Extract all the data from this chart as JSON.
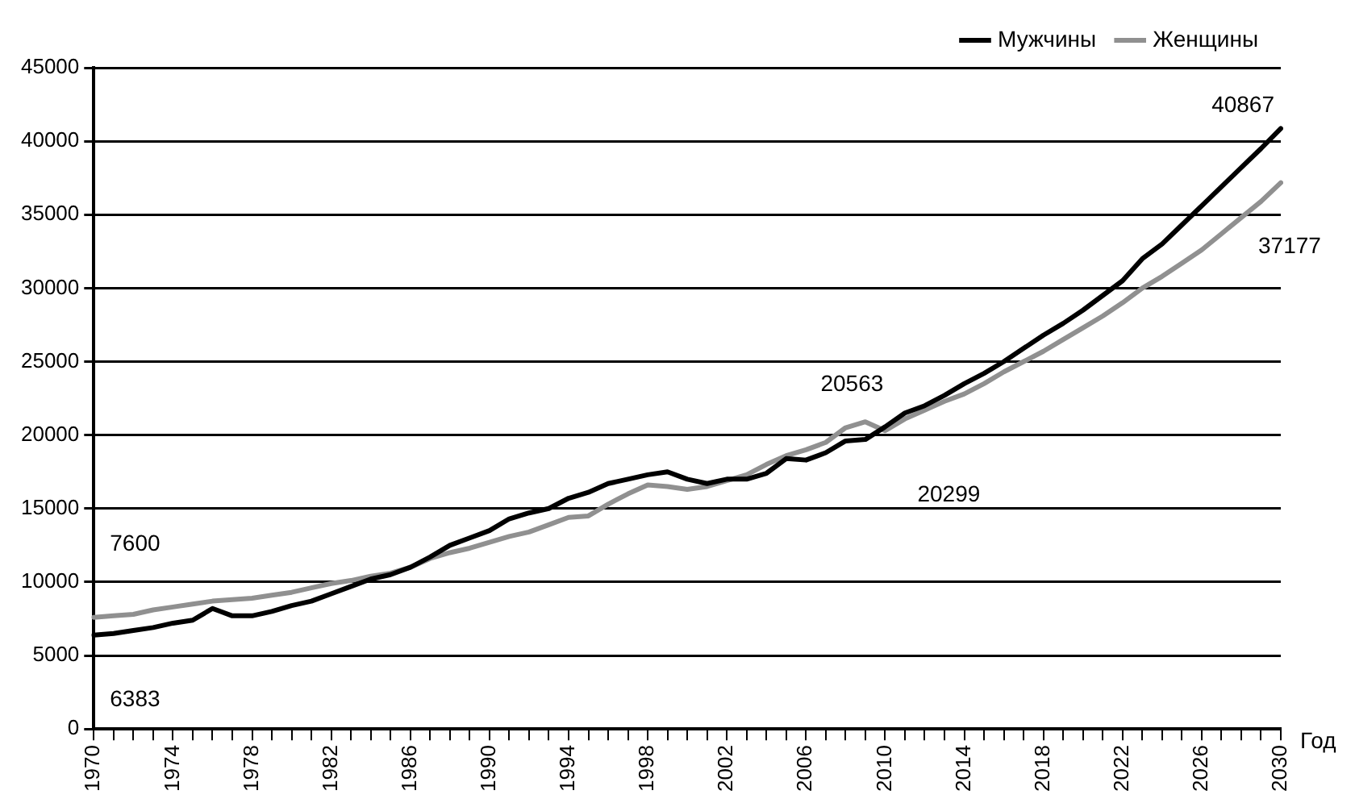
{
  "chart_data": {
    "type": "line",
    "xlabel": "Год",
    "categories": [
      "1970",
      null,
      null,
      null,
      "1974",
      null,
      null,
      null,
      "1978",
      null,
      null,
      null,
      "1982",
      null,
      null,
      null,
      "1986",
      null,
      null,
      null,
      "1990",
      null,
      null,
      null,
      "1994",
      null,
      null,
      null,
      "1998",
      null,
      null,
      null,
      "2002",
      null,
      null,
      null,
      "2006",
      null,
      null,
      null,
      "2010",
      null,
      null,
      null,
      "2014",
      null,
      null,
      null,
      "2018",
      null,
      null,
      null,
      "2022",
      null,
      null,
      null,
      "2026",
      null,
      null,
      null,
      "2030"
    ],
    "series": [
      {
        "name": "Мужчины",
        "color": "#000000",
        "values": [
          6383,
          6500,
          6700,
          6900,
          7200,
          7400,
          8200,
          7700,
          7700,
          8000,
          8400,
          8700,
          9200,
          9700,
          10200,
          10500,
          11000,
          11700,
          12500,
          13000,
          13500,
          14300,
          14700,
          15000,
          15700,
          16100,
          16700,
          17000,
          17300,
          17500,
          17000,
          16700,
          17000,
          17000,
          17400,
          18400,
          18300,
          18800,
          19600,
          19700,
          20563,
          21500,
          22000,
          22700,
          23500,
          24200,
          25000,
          25900,
          26800,
          27600,
          28500,
          29500,
          30500,
          32000,
          33000,
          34300,
          35600,
          36900,
          38200,
          39500,
          40867
        ]
      },
      {
        "name": "Женщины",
        "color": "#909090",
        "values": [
          7600,
          7700,
          7800,
          8100,
          8300,
          8500,
          8700,
          8800,
          8900,
          9100,
          9300,
          9600,
          9900,
          10100,
          10400,
          10600,
          11000,
          11600,
          12000,
          12300,
          12700,
          13100,
          13400,
          13900,
          14400,
          14500,
          15300,
          16000,
          16600,
          16500,
          16300,
          16500,
          16900,
          17300,
          18000,
          18600,
          19000,
          19500,
          20500,
          20900,
          20299,
          21100,
          21700,
          22300,
          22800,
          23500,
          24300,
          25000,
          25700,
          26500,
          27300,
          28100,
          29000,
          30000,
          30800,
          31700,
          32600,
          33700,
          34800,
          35900,
          37177
        ]
      }
    ],
    "ylim": [
      0,
      45000
    ],
    "yticks": [
      0,
      5000,
      10000,
      15000,
      20000,
      25000,
      30000,
      35000,
      40000,
      45000
    ],
    "grid": "y",
    "legend": "top right",
    "marker": "none",
    "line_style": "solid",
    "annotations": [
      {
        "text": "7600",
        "x": "1970",
        "y": 7600
      },
      {
        "text": "6383",
        "x": "1970",
        "y": 6383
      },
      {
        "text": "20563",
        "x": "2010",
        "y": 20563
      },
      {
        "text": "20299",
        "x": "2010",
        "y": 20299
      },
      {
        "text": "40867",
        "x": "2030",
        "y": 40867
      },
      {
        "text": "37177",
        "x": "2030",
        "y": 37177
      }
    ]
  }
}
